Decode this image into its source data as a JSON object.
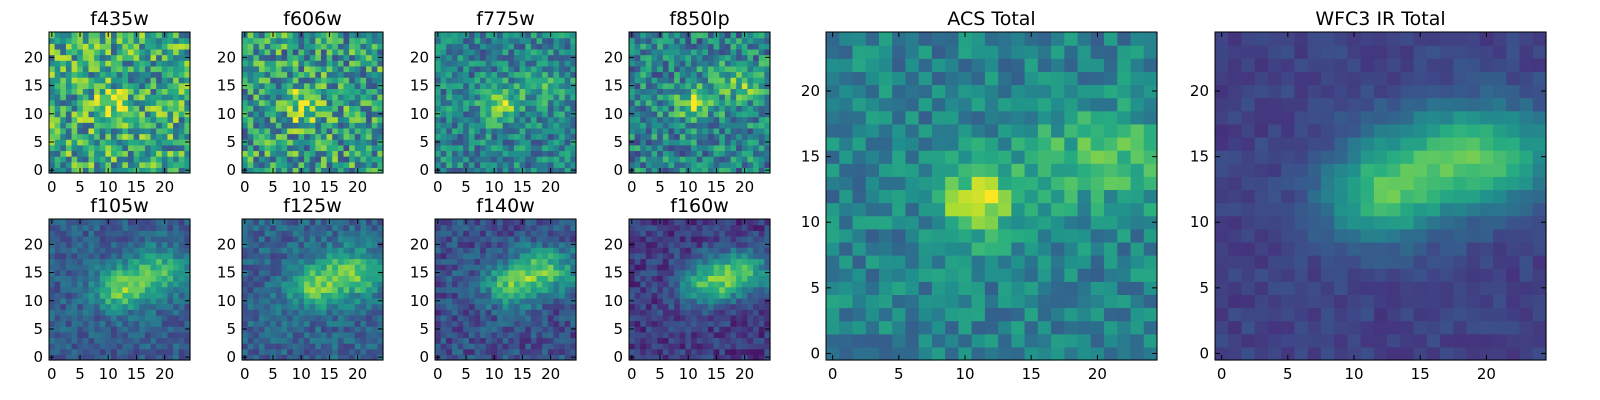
{
  "chart_data": [
    {
      "type": "heatmap",
      "title": "f435w",
      "colormap": "viridis",
      "xlim": [
        0,
        24
      ],
      "ylim": [
        0,
        24
      ],
      "xticks": [
        0,
        5,
        10,
        15,
        20
      ],
      "yticks": [
        0,
        5,
        10,
        15,
        20
      ],
      "xticklabels": [
        "0",
        "5",
        "10",
        "15",
        "20"
      ],
      "yticklabels": [
        "0",
        "5",
        "10",
        "15",
        "20"
      ],
      "blobs": [
        {
          "x": 11,
          "y": 11.5,
          "sx": 2.5,
          "sy": 2.0,
          "amp": 0.25
        }
      ],
      "noise": 0.32,
      "base": 0.6,
      "seed": 11
    },
    {
      "type": "heatmap",
      "title": "f606w",
      "colormap": "viridis",
      "xlim": [
        0,
        24
      ],
      "ylim": [
        0,
        24
      ],
      "xticks": [
        0,
        5,
        10,
        15,
        20
      ],
      "yticks": [
        0,
        5,
        10,
        15,
        20
      ],
      "xticklabels": [
        "0",
        "5",
        "10",
        "15",
        "20"
      ],
      "yticklabels": [
        "0",
        "5",
        "10",
        "15",
        "20"
      ],
      "blobs": [
        {
          "x": 10.5,
          "y": 11.5,
          "sx": 2.5,
          "sy": 2.2,
          "amp": 0.35
        }
      ],
      "noise": 0.32,
      "base": 0.55,
      "seed": 23
    },
    {
      "type": "heatmap",
      "title": "f775w",
      "colormap": "viridis",
      "xlim": [
        0,
        24
      ],
      "ylim": [
        0,
        24
      ],
      "xticks": [
        0,
        5,
        10,
        15,
        20
      ],
      "yticks": [
        0,
        5,
        10,
        15,
        20
      ],
      "xticklabels": [
        "0",
        "5",
        "10",
        "15",
        "20"
      ],
      "yticklabels": [
        "0",
        "5",
        "10",
        "15",
        "20"
      ],
      "blobs": [
        {
          "x": 11,
          "y": 11.5,
          "sx": 2.2,
          "sy": 2.0,
          "amp": 0.4
        },
        {
          "x": 19,
          "y": 15,
          "sx": 4,
          "sy": 2.5,
          "amp": 0.15
        }
      ],
      "noise": 0.22,
      "base": 0.45,
      "seed": 37
    },
    {
      "type": "heatmap",
      "title": "f850lp",
      "colormap": "viridis",
      "xlim": [
        0,
        24
      ],
      "ylim": [
        0,
        24
      ],
      "xticks": [
        0,
        5,
        10,
        15,
        20
      ],
      "yticks": [
        0,
        5,
        10,
        15,
        20
      ],
      "xticklabels": [
        "0",
        "5",
        "10",
        "15",
        "20"
      ],
      "yticklabels": [
        "0",
        "5",
        "10",
        "15",
        "20"
      ],
      "blobs": [
        {
          "x": 11,
          "y": 12,
          "sx": 2.3,
          "sy": 2.0,
          "amp": 0.35
        },
        {
          "x": 19,
          "y": 15,
          "sx": 4,
          "sy": 2.5,
          "amp": 0.25
        }
      ],
      "noise": 0.25,
      "base": 0.45,
      "seed": 41
    },
    {
      "type": "heatmap",
      "title": "f105w",
      "colormap": "viridis",
      "xlim": [
        0,
        24
      ],
      "ylim": [
        0,
        24
      ],
      "xticks": [
        0,
        5,
        10,
        15,
        20
      ],
      "yticks": [
        0,
        5,
        10,
        15,
        20
      ],
      "xticklabels": [
        "0",
        "5",
        "10",
        "15",
        "20"
      ],
      "yticklabels": [
        "0",
        "5",
        "10",
        "15",
        "20"
      ],
      "blobs": [
        {
          "x": 12,
          "y": 12,
          "sx": 3.2,
          "sy": 2.6,
          "amp": 0.45
        },
        {
          "x": 19,
          "y": 15,
          "sx": 4,
          "sy": 3,
          "amp": 0.4
        }
      ],
      "noise": 0.12,
      "base": 0.3,
      "seed": 53
    },
    {
      "type": "heatmap",
      "title": "f125w",
      "colormap": "viridis",
      "xlim": [
        0,
        24
      ],
      "ylim": [
        0,
        24
      ],
      "xticks": [
        0,
        5,
        10,
        15,
        20
      ],
      "yticks": [
        0,
        5,
        10,
        15,
        20
      ],
      "xticklabels": [
        "0",
        "5",
        "10",
        "15",
        "20"
      ],
      "yticklabels": [
        "0",
        "5",
        "10",
        "15",
        "20"
      ],
      "blobs": [
        {
          "x": 12,
          "y": 12.5,
          "sx": 3.2,
          "sy": 2.6,
          "amp": 0.4
        },
        {
          "x": 19,
          "y": 15,
          "sx": 4,
          "sy": 3,
          "amp": 0.45
        }
      ],
      "noise": 0.13,
      "base": 0.32,
      "seed": 67
    },
    {
      "type": "heatmap",
      "title": "f140w",
      "colormap": "viridis",
      "xlim": [
        0,
        24
      ],
      "ylim": [
        0,
        24
      ],
      "xticks": [
        0,
        5,
        10,
        15,
        20
      ],
      "yticks": [
        0,
        5,
        10,
        15,
        20
      ],
      "xticklabels": [
        "0",
        "5",
        "10",
        "15",
        "20"
      ],
      "yticklabels": [
        "0",
        "5",
        "10",
        "15",
        "20"
      ],
      "blobs": [
        {
          "x": 13,
          "y": 12.5,
          "sx": 3.5,
          "sy": 2.6,
          "amp": 0.4
        },
        {
          "x": 19,
          "y": 15.5,
          "sx": 4.5,
          "sy": 2.8,
          "amp": 0.45
        }
      ],
      "noise": 0.14,
      "base": 0.25,
      "seed": 71
    },
    {
      "type": "heatmap",
      "title": "f160w",
      "colormap": "viridis",
      "xlim": [
        0,
        24
      ],
      "ylim": [
        0,
        24
      ],
      "xticks": [
        0,
        5,
        10,
        15,
        20
      ],
      "yticks": [
        0,
        5,
        10,
        15,
        20
      ],
      "xticklabels": [
        "0",
        "5",
        "10",
        "15",
        "20"
      ],
      "yticklabels": [
        "0",
        "5",
        "10",
        "15",
        "20"
      ],
      "blobs": [
        {
          "x": 13,
          "y": 12.5,
          "sx": 3.5,
          "sy": 2.6,
          "amp": 0.4
        },
        {
          "x": 19,
          "y": 15,
          "sx": 4.5,
          "sy": 2.8,
          "amp": 0.5
        }
      ],
      "noise": 0.12,
      "base": 0.18,
      "seed": 83
    },
    {
      "type": "heatmap",
      "title": "ACS Total",
      "colormap": "viridis",
      "xlim": [
        0,
        24
      ],
      "ylim": [
        0,
        24
      ],
      "xticks": [
        0,
        5,
        10,
        15,
        20
      ],
      "yticks": [
        0,
        5,
        10,
        15,
        20
      ],
      "xticklabels": [
        "0",
        "5",
        "10",
        "15",
        "20"
      ],
      "yticklabels": [
        "0",
        "5",
        "10",
        "15",
        "20"
      ],
      "blobs": [
        {
          "x": 11,
          "y": 11.5,
          "sx": 2.0,
          "sy": 1.8,
          "amp": 0.5
        },
        {
          "x": 20,
          "y": 15,
          "sx": 4.5,
          "sy": 2.5,
          "amp": 0.25
        }
      ],
      "noise": 0.15,
      "base": 0.45,
      "seed": 97
    },
    {
      "type": "heatmap",
      "title": "WFC3 IR Total",
      "colormap": "viridis",
      "xlim": [
        0,
        24
      ],
      "ylim": [
        0,
        24
      ],
      "xticks": [
        0,
        5,
        10,
        15,
        20
      ],
      "yticks": [
        0,
        5,
        10,
        15,
        20
      ],
      "xticklabels": [
        "0",
        "5",
        "10",
        "15",
        "20"
      ],
      "yticklabels": [
        "0",
        "5",
        "10",
        "15",
        "20"
      ],
      "blobs": [
        {
          "x": 12,
          "y": 12,
          "sx": 3.0,
          "sy": 2.5,
          "amp": 0.45
        },
        {
          "x": 19,
          "y": 15,
          "sx": 4.5,
          "sy": 2.8,
          "amp": 0.55
        }
      ],
      "noise": 0.05,
      "base": 0.2,
      "seed": 101
    }
  ]
}
